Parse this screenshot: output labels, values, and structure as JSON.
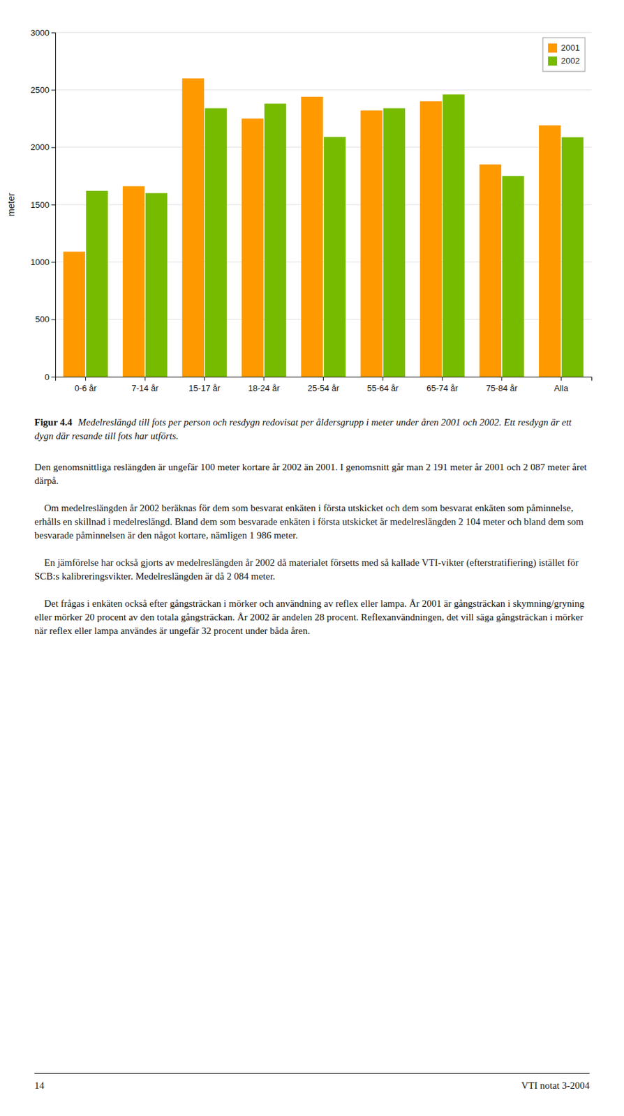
{
  "chart_data": {
    "type": "bar",
    "categories": [
      "0-6 år",
      "7-14 år",
      "15-17 år",
      "18-24 år",
      "25-54 år",
      "55-64 år",
      "65-74 år",
      "75-84 år",
      "Alla"
    ],
    "series": [
      {
        "name": "2001",
        "color": "#FF9900",
        "values": [
          1090,
          1660,
          2600,
          2250,
          2440,
          2320,
          2400,
          1850,
          2191
        ]
      },
      {
        "name": "2002",
        "color": "#77BB00",
        "values": [
          1620,
          1600,
          2340,
          2380,
          2090,
          2340,
          2460,
          1750,
          2087
        ]
      }
    ],
    "ylabel": "meter",
    "ylim": [
      0,
      3000
    ],
    "yticks": [
      0,
      500,
      1000,
      1500,
      2000,
      2500,
      3000
    ],
    "grid": true,
    "legend": "upper right"
  },
  "caption_label": "Figur 4.4",
  "caption": "Medelreslängd till fots per person och resdygn redovisat per åldersgrupp i meter under åren 2001 och 2002. Ett resdygn är ett dygn där resande till fots har utförts.",
  "paragraphs": [
    "Den genomsnittliga reslängden är ungefär 100 meter kortare år 2002 än 2001. I genomsnitt går man 2 191 meter år 2001 och 2 087 meter året därpå.",
    " Om medelreslängden år 2002 beräknas för dem som besvarat enkäten i första utskicket och dem som besvarat enkäten som påminnelse, erhålls en skillnad i medelreslängd. Bland dem som besvarade enkäten i första utskicket är medelreslängden 2 104 meter och bland dem som besvarade påminnelsen är den något kortare, nämligen 1 986 meter.",
    " En jämförelse har också gjorts av medelreslängden år 2002 då materialet försetts med så kallade VTI-vikter (efterstratifiering) istället för SCB:s kalibreringsvik­ter. Medelreslängden är då 2 084 meter.",
    " Det frågas i enkäten också efter gångsträckan i mörker och användning av reflex eller lampa. År 2001 är gångsträckan i skymning/gryning eller mörker 20 procent av den totala gångsträckan. År 2002 är andelen 28 procent. Reflexanvändningen, det vill säga gångsträckan i mörker när reflex eller lampa användes är ungefär 32 procent under båda åren."
  ],
  "footer_left": "14",
  "footer_right": "VTI notat 3-2004"
}
